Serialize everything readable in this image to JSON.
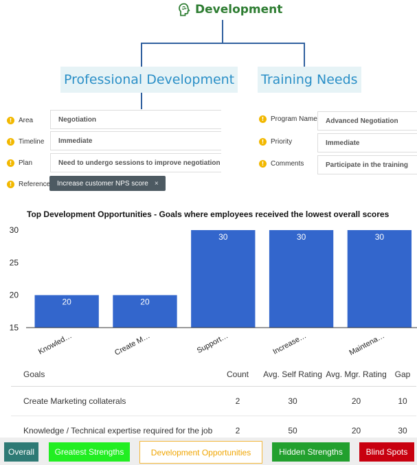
{
  "header": {
    "title": "Development",
    "icon": "head-brain-icon"
  },
  "professional": {
    "title": "Professional Development",
    "fields": [
      {
        "label": "Area",
        "value": "Negotiation"
      },
      {
        "label": "Timeline",
        "value": "Immediate"
      },
      {
        "label": "Plan",
        "value": "Need to undergo sessions to improve negotiation skills"
      },
      {
        "label": "Reference",
        "tag": "Increase customer NPS score",
        "tag_close": "×"
      }
    ]
  },
  "training": {
    "title": "Training Needs",
    "fields": [
      {
        "label": "Program Name",
        "value": "Advanced Negotiation"
      },
      {
        "label": "Priority",
        "value": "Immediate"
      },
      {
        "label": "Comments",
        "value": "Participate in the training"
      }
    ]
  },
  "info_icon_glyph": "!",
  "chart_data": {
    "type": "bar",
    "title": "Top Development Opportunities - Goals where employees received the lowest overall scores",
    "categories": [
      "Knowled…",
      "Create M…",
      "Support…",
      "Increase…",
      "Maintena…"
    ],
    "values": [
      20,
      20,
      30,
      30,
      30
    ],
    "data_labels": [
      "20",
      "20",
      "30",
      "30",
      "30"
    ],
    "ylim": [
      15,
      30
    ],
    "yticks": [
      15,
      20,
      25,
      30
    ],
    "bar_color": "#3366cc",
    "grid": false
  },
  "table": {
    "headers": {
      "goal": "Goals",
      "count": "Count",
      "self": "Avg. Self Rating",
      "mgr": "Avg. Mgr. Rating",
      "gap": "Gap"
    },
    "rows": [
      {
        "goal": "Create Marketing collaterals",
        "count": "2",
        "self": "30",
        "mgr": "20",
        "gap": "10"
      },
      {
        "goal": "Knowledge / Technical expertise required for the job",
        "count": "2",
        "self": "50",
        "mgr": "20",
        "gap": "30"
      }
    ]
  },
  "tabs": [
    {
      "label": "Overall",
      "bg": "#2e7a75",
      "color": "#ffffff",
      "border": "#2e7a75"
    },
    {
      "label": "Greatest Strengths",
      "bg": "#22ee22",
      "color": "#ffffff",
      "border": "#22ee22"
    },
    {
      "label": "Development Opportunities",
      "bg": "#ffffff",
      "color": "#f0a500",
      "border": "#f3b73a"
    },
    {
      "label": "Hidden Strengths",
      "bg": "#22a02e",
      "color": "#ffffff",
      "border": "#22a02e"
    },
    {
      "label": "Blind Spots",
      "bg": "#c8000f",
      "color": "#ffffff",
      "border": "#c8000f"
    }
  ]
}
